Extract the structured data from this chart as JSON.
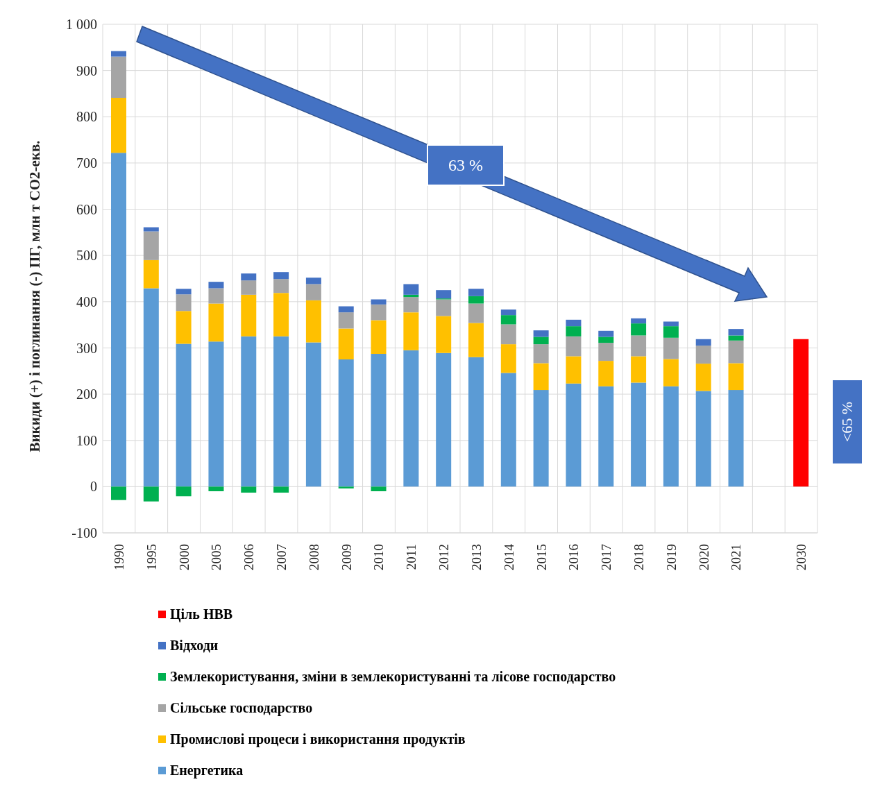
{
  "chart_data": {
    "type": "bar",
    "stacked": true,
    "ylabel": "Викиди (+) і поглинання (-) ПГ, млн т CO2-екв.",
    "categories": [
      "1990",
      "1995",
      "2000",
      "2005",
      "2006",
      "2007",
      "2008",
      "2009",
      "2010",
      "2011",
      "2012",
      "2013",
      "2014",
      "2015",
      "2016",
      "2017",
      "2018",
      "2019",
      "2020",
      "2021",
      null,
      "2030"
    ],
    "series": [
      {
        "name": "Енергетика",
        "color": "#5b9bd5",
        "values": [
          722,
          429,
          309,
          314,
          325,
          325,
          312,
          275,
          287,
          295,
          289,
          280,
          246,
          209,
          223,
          217,
          225,
          217,
          207,
          209,
          null,
          null
        ]
      },
      {
        "name": "Промислові процеси і використання продуктів",
        "color": "#ffc000",
        "values": [
          119,
          61,
          71,
          82,
          90,
          94,
          91,
          67,
          73,
          82,
          80,
          74,
          62,
          58,
          59,
          55,
          57,
          59,
          59,
          58,
          null,
          null
        ]
      },
      {
        "name": "Сільське господарство",
        "color": "#a5a5a5",
        "values": [
          89,
          62,
          36,
          33,
          31,
          30,
          35,
          35,
          34,
          33,
          36,
          42,
          43,
          41,
          43,
          39,
          45,
          46,
          39,
          49,
          null,
          null
        ]
      },
      {
        "name": "Землекористування, зміни в землекористуванні та лісове господарство",
        "color": "#00b050",
        "values": [
          -29,
          -32,
          -21,
          -10,
          -13,
          -13,
          0,
          -4,
          -10,
          5,
          2,
          16,
          20,
          16,
          22,
          13,
          26,
          25,
          0,
          11,
          null,
          null
        ]
      },
      {
        "name": "Відходи",
        "color": "#4472c4",
        "values": [
          12,
          9,
          12,
          14,
          15,
          15,
          14,
          13,
          11,
          23,
          18,
          16,
          12,
          14,
          14,
          13,
          11,
          10,
          14,
          14,
          null,
          null
        ]
      },
      {
        "name": "Ціль НВВ",
        "color": "#ff0000",
        "values": [
          null,
          null,
          null,
          null,
          null,
          null,
          null,
          null,
          null,
          null,
          null,
          null,
          null,
          null,
          null,
          null,
          null,
          null,
          null,
          null,
          null,
          319
        ]
      }
    ],
    "ylim": [
      -100,
      1000
    ],
    "yticks": [
      -100,
      0,
      100,
      200,
      300,
      400,
      500,
      600,
      700,
      800,
      900,
      {
        "value": 1000,
        "label": "1 000"
      }
    ],
    "grid": true,
    "legend": "bottom",
    "annotations": [
      "63 %",
      "<65 %"
    ]
  }
}
